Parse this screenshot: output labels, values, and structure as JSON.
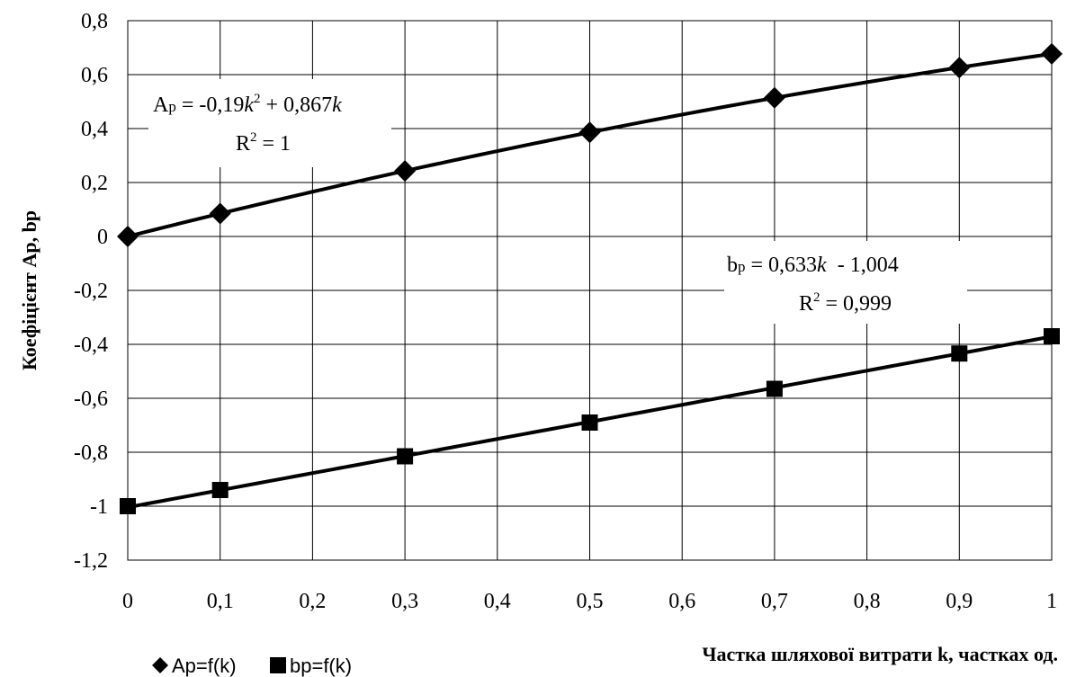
{
  "chart_data": {
    "type": "scatter",
    "xlabel": "Частка шляхової витрати k, частках од.",
    "ylabel": "Коефіцієнт Ap, bp",
    "xlim": [
      0,
      1
    ],
    "ylim": [
      -1.2,
      0.8
    ],
    "x_ticks": [
      "0",
      "0,1",
      "0,2",
      "0,3",
      "0,4",
      "0,5",
      "0,6",
      "0,7",
      "0,8",
      "0,9",
      "1"
    ],
    "y_ticks": [
      "0,8",
      "0,6",
      "0,4",
      "0,2",
      "0",
      "-0,2",
      "-0,4",
      "-0,6",
      "-0,8",
      "-1",
      "-1,2"
    ],
    "grid": true,
    "legend_position": "bottom-left",
    "series": [
      {
        "name": "Ap=f(k)",
        "marker": "diamond",
        "color": "#000000",
        "x": [
          0,
          0.1,
          0.3,
          0.5,
          0.7,
          0.9,
          1
        ],
        "y": [
          0.0,
          0.085,
          0.243,
          0.386,
          0.514,
          0.626,
          0.677
        ],
        "trendline": {
          "type": "poly2",
          "a": -0.19,
          "b": 0.867,
          "c": 0
        }
      },
      {
        "name": "bp=f(k)",
        "marker": "square",
        "color": "#000000",
        "x": [
          0,
          0.1,
          0.3,
          0.5,
          0.7,
          0.9,
          1
        ],
        "y": [
          -1.0,
          -0.94,
          -0.815,
          -0.69,
          -0.565,
          -0.434,
          -0.37
        ],
        "trendline": {
          "type": "linear",
          "a": 0.633,
          "b": -1.004
        }
      }
    ],
    "annotations": {
      "ap": {
        "l1a": "A",
        "l1b": "p",
        "l1c": " = -0,19",
        "l1d": "k",
        "l1e": "2",
        "l1f": " + 0,867",
        "l1g": "k",
        "l2a": "R",
        "l2b": "2",
        "l2c": " = 1"
      },
      "bp": {
        "l1a": "b",
        "l1b": "p",
        "l1c": " = 0,633",
        "l1d": "k",
        "l1e": "  - 1,004",
        "l2a": "R",
        "l2b": "2",
        "l2c": " = 0,999"
      }
    }
  }
}
